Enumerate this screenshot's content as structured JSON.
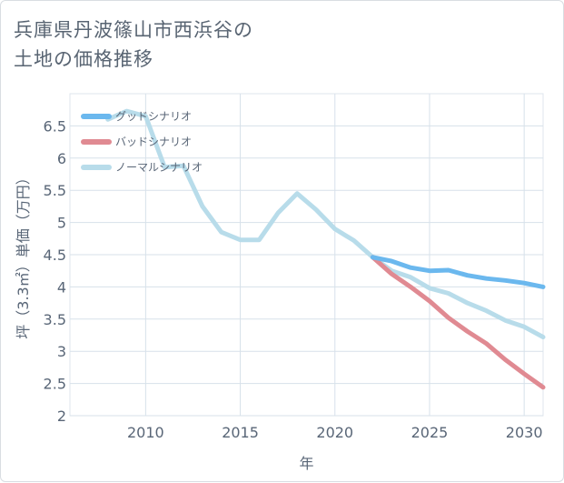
{
  "title_line1": "兵庫県丹波篠山市西浜谷の",
  "title_line2": "土地の価格推移",
  "chart_data": {
    "type": "line",
    "title": "兵庫県丹波篠山市西浜谷の土地の価格推移",
    "xlabel": "年",
    "ylabel": "坪（3.3㎡）単価（万円）",
    "xlim": [
      2006,
      2031
    ],
    "ylim": [
      2,
      7
    ],
    "x_ticks": [
      2010,
      2015,
      2020,
      2025,
      2030
    ],
    "y_ticks": [
      2,
      2.5,
      3,
      3.5,
      4,
      4.5,
      5,
      5.5,
      6,
      6.5
    ],
    "grid": true,
    "legend_position": "top-left",
    "series": [
      {
        "name": "グッドシナリオ",
        "color": "#6bb8ee",
        "x": [
          2022,
          2023,
          2024,
          2025,
          2026,
          2027,
          2028,
          2029,
          2030,
          2031
        ],
        "values": [
          4.46,
          4.4,
          4.3,
          4.25,
          4.26,
          4.18,
          4.13,
          4.1,
          4.06,
          4.0
        ]
      },
      {
        "name": "バッドシナリオ",
        "color": "#e08a92",
        "x": [
          2022,
          2023,
          2024,
          2025,
          2026,
          2027,
          2028,
          2029,
          2030,
          2031
        ],
        "values": [
          4.46,
          4.2,
          4.0,
          3.78,
          3.52,
          3.31,
          3.12,
          2.87,
          2.65,
          2.44
        ]
      },
      {
        "name": "ノーマルシナリオ",
        "color": "#b8dcea",
        "x": [
          2008,
          2009,
          2010,
          2011,
          2012,
          2013,
          2014,
          2015,
          2016,
          2017,
          2018,
          2019,
          2020,
          2021,
          2022,
          2023,
          2024,
          2025,
          2026,
          2027,
          2028,
          2029,
          2030,
          2031
        ],
        "values": [
          6.6,
          6.73,
          6.65,
          5.86,
          5.88,
          5.25,
          4.85,
          4.73,
          4.73,
          5.15,
          5.45,
          5.2,
          4.9,
          4.72,
          4.46,
          4.25,
          4.15,
          3.98,
          3.9,
          3.75,
          3.63,
          3.48,
          3.38,
          3.22
        ]
      }
    ]
  }
}
